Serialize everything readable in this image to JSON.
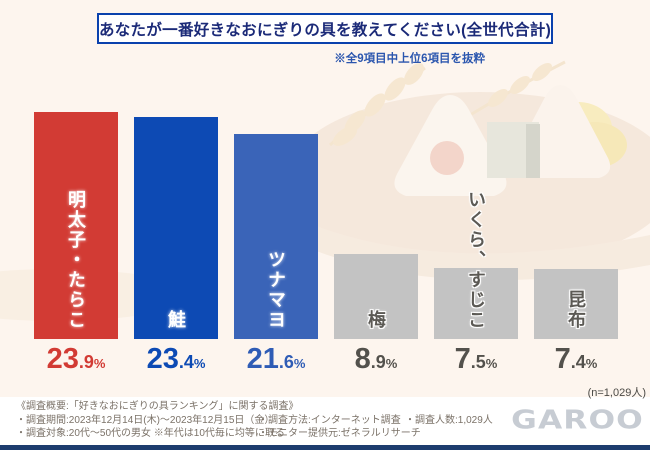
{
  "page": {
    "title": "あなたが一番好きなおにぎりの具を教えてください(全世代合計)",
    "subtitle": "※全9項目中上位6項目を抜粋",
    "sample_note": "(n=1,029人)",
    "logo": "GAROO"
  },
  "chart_data": {
    "type": "bar",
    "title": "あなたが一番好きなおにぎりの具を教えてください(全世代合計)",
    "note": "※全9項目中上位6項目を抜粋",
    "unit": "%",
    "ylim": [
      0,
      25
    ],
    "categories": [
      "明太子・たらこ",
      "鮭",
      "ツナマヨ",
      "梅",
      "いくら、すじこ",
      "昆布"
    ],
    "values": [
      23.9,
      23.4,
      21.6,
      8.9,
      7.5,
      7.4
    ],
    "value_labels": [
      "23.9%",
      "23.4%",
      "21.6%",
      "8.9%",
      "7.5%",
      "7.4%"
    ],
    "bar_colors": [
      "#d23b34",
      "#0d4ab4",
      "#3a64b8",
      "#c3c3c3",
      "#c3c3c3",
      "#c3c3c3"
    ],
    "label_colors": [
      "#ffffff",
      "#ffffff",
      "#ffffff",
      "#5c5a55",
      "#5c5a55",
      "#5c5a55"
    ],
    "value_colors": [
      "#d23b34",
      "#0d4ab4",
      "#2f5cb5",
      "#53514c",
      "#53514c",
      "#53514c"
    ],
    "n_label": "(n=1,029人)"
  },
  "footer": {
    "col1": [
      "《調査概要:「好きなおにぎりの具ランキング」に関する調査》",
      "・調査期間:2023年12月14日(木)～2023年12月15日（金）",
      "・調査対象:20代～50代の男女 ※年代は10代毎に均等に取る"
    ],
    "col2": [
      "・調査方法:インターネット調査",
      "・モニター提供元:ゼネラルリサーチ"
    ],
    "col3": [
      "・調査人数:1,029人"
    ]
  },
  "colors": {
    "background": "#fdf5ee",
    "title_border": "#0a41ad",
    "title_text": "#1b2a78",
    "subtitle_text": "#2b56ae",
    "bar_red": "#d23b34",
    "bar_blue_dark": "#0d4ab4",
    "bar_blue_light": "#3a64b8",
    "bar_gray": "#c3c3c3",
    "footer_text": "#7b7268",
    "bottom_rule": "#1d3c6e",
    "logo_gray": "#c7ccd3"
  }
}
